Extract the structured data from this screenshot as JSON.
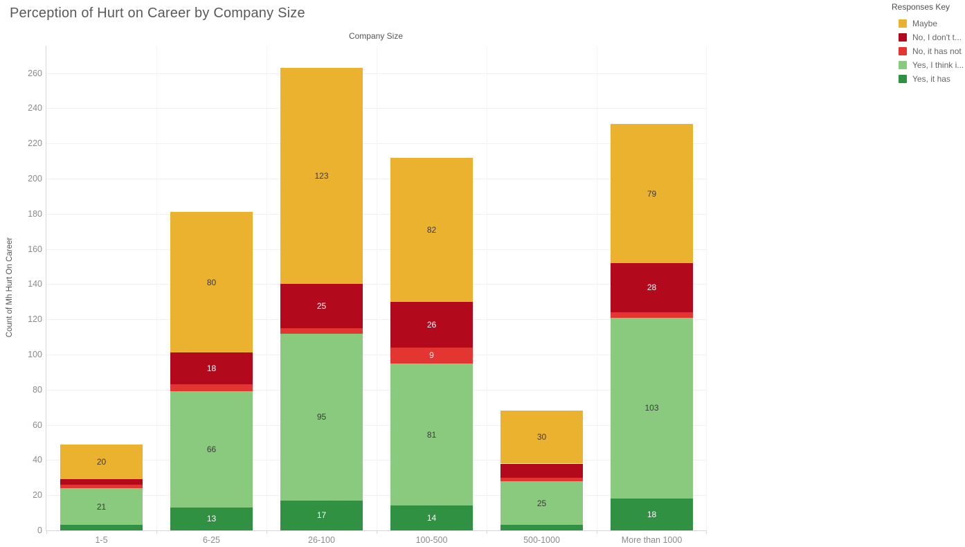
{
  "title": "Perception of Hurt on Career by Company Size",
  "axes": {
    "column_axis_title": "Company Size",
    "y_axis_title": "Count of Mh Hurt On Career"
  },
  "legend": {
    "title": "Responses Key",
    "items": [
      {
        "label": "Maybe",
        "color": "#EAB22E"
      },
      {
        "label": "No, I don't t...",
        "color": "#B20A1C"
      },
      {
        "label": "No, it has not",
        "color": "#E33531"
      },
      {
        "label": "Yes, I think i...",
        "color": "#8ACA7E"
      },
      {
        "label": "Yes, it has",
        "color": "#309143"
      }
    ]
  },
  "chart_data": {
    "type": "bar",
    "stacked": true,
    "stack_order": "bottom-to-top",
    "title": "Perception of Hurt on Career by Company Size",
    "xlabel": "Company Size",
    "ylabel": "Count of Mh Hurt On Career",
    "categories": [
      "1-5",
      "6-25",
      "26-100",
      "100-500",
      "500-1000",
      "More than 1000"
    ],
    "series": [
      {
        "name": "Yes, it has",
        "color": "#309143",
        "label_color": "#ffffff",
        "values": [
          3,
          13,
          17,
          14,
          3,
          18
        ],
        "labels": [
          null,
          "13",
          "17",
          "14",
          null,
          "18"
        ]
      },
      {
        "name": "Yes, I think i...",
        "color": "#8ACA7E",
        "label_color": "#3b3b3b",
        "values": [
          21,
          66,
          95,
          81,
          25,
          103
        ],
        "labels": [
          "21",
          "66",
          "95",
          "81",
          "25",
          "103"
        ]
      },
      {
        "name": "No, it has not",
        "color": "#E33531",
        "label_color": "#ffffff",
        "values": [
          2,
          4,
          3,
          9,
          2,
          3
        ],
        "labels": [
          null,
          null,
          null,
          "9",
          null,
          null
        ]
      },
      {
        "name": "No, I don't t...",
        "color": "#B20A1C",
        "label_color": "#ffffff",
        "values": [
          3,
          18,
          25,
          26,
          8,
          28
        ],
        "labels": [
          null,
          "18",
          "25",
          "26",
          null,
          "28"
        ]
      },
      {
        "name": "Maybe",
        "color": "#EAB22E",
        "label_color": "#3c3c3c",
        "values": [
          20,
          80,
          123,
          82,
          30,
          79
        ],
        "labels": [
          "20",
          "80",
          "123",
          "82",
          "30",
          "79"
        ]
      }
    ],
    "totals": [
      49,
      181,
      263,
      212,
      68,
      231
    ],
    "y_ticks": [
      0,
      20,
      40,
      60,
      80,
      100,
      120,
      140,
      160,
      180,
      200,
      220,
      240,
      260
    ],
    "ylim": [
      0,
      276
    ],
    "grid": true,
    "legend_position": "top-right"
  }
}
